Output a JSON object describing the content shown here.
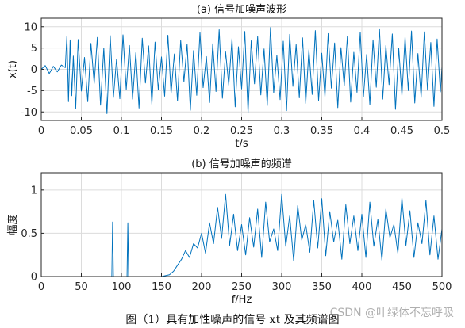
{
  "figure_caption": "图（1）具有加性噪声的信号 xt 及其频谱图",
  "watermark": "CSDN @叶绿体不忘呼吸",
  "chart_data": [
    {
      "type": "line",
      "title": "(a) 信号加噪声波形",
      "xlabel": "t/s",
      "ylabel": "x(t)",
      "xlim": [
        0,
        0.5
      ],
      "ylim": [
        -12,
        12
      ],
      "xticks": [
        "0",
        "0.05",
        "0.1",
        "0.15",
        "0.2",
        "0.25",
        "0.3",
        "0.35",
        "0.4",
        "0.45",
        "0.5"
      ],
      "yticks": [
        "-10",
        "-5",
        "0",
        "5",
        "10"
      ],
      "grid": true,
      "color": "#0072BD",
      "series": [
        {
          "x": [
            0,
            0.005,
            0.01,
            0.015,
            0.02,
            0.025,
            0.03,
            0.032,
            0.034,
            0.036,
            0.038,
            0.04,
            0.043,
            0.046,
            0.05,
            0.054,
            0.058,
            0.062,
            0.066,
            0.07,
            0.074,
            0.078,
            0.082,
            0.086,
            0.09,
            0.094,
            0.098,
            0.102,
            0.106,
            0.11,
            0.114,
            0.118,
            0.122,
            0.126,
            0.13,
            0.134,
            0.138,
            0.142,
            0.146,
            0.15,
            0.154,
            0.158,
            0.162,
            0.166,
            0.17,
            0.174,
            0.178,
            0.182,
            0.186,
            0.19,
            0.194,
            0.198,
            0.202,
            0.206,
            0.21,
            0.214,
            0.218,
            0.222,
            0.226,
            0.23,
            0.234,
            0.238,
            0.242,
            0.246,
            0.25,
            0.254,
            0.258,
            0.262,
            0.266,
            0.27,
            0.274,
            0.278,
            0.282,
            0.286,
            0.29,
            0.294,
            0.298,
            0.302,
            0.306,
            0.31,
            0.314,
            0.318,
            0.322,
            0.326,
            0.33,
            0.334,
            0.338,
            0.342,
            0.346,
            0.35,
            0.354,
            0.358,
            0.362,
            0.366,
            0.37,
            0.374,
            0.378,
            0.382,
            0.386,
            0.39,
            0.394,
            0.398,
            0.402,
            0.406,
            0.41,
            0.414,
            0.418,
            0.422,
            0.426,
            0.43,
            0.434,
            0.438,
            0.442,
            0.446,
            0.45,
            0.454,
            0.458,
            0.462,
            0.466,
            0.47,
            0.474,
            0.478,
            0.482,
            0.486,
            0.49,
            0.494,
            0.498,
            0.5
          ],
          "y": [
            0,
            0.9,
            -1.0,
            0.7,
            -0.6,
            1.0,
            0.4,
            7.8,
            -7.6,
            6.9,
            -6.2,
            3.1,
            -9.2,
            7.0,
            -5.1,
            2.8,
            -7.6,
            6.1,
            -3.3,
            7.5,
            -8.4,
            5.0,
            -10.4,
            7.9,
            -6.6,
            2.4,
            -6.9,
            8.1,
            -4.7,
            5.6,
            -7.0,
            3.9,
            -9.1,
            7.3,
            -3.2,
            5.5,
            -8.2,
            6.4,
            -4.8,
            2.9,
            -6.3,
            8.0,
            -5.7,
            3.6,
            -7.4,
            6.8,
            -2.9,
            5.9,
            -9.6,
            4.4,
            -6.1,
            8.6,
            -4.3,
            3.0,
            -7.8,
            6.0,
            -5.2,
            9.3,
            -6.8,
            4.1,
            -3.7,
            7.2,
            -8.8,
            5.3,
            -4.6,
            8.9,
            -10.2,
            6.7,
            -3.4,
            7.7,
            -6.0,
            4.8,
            -8.5,
            9.8,
            -5.5,
            3.3,
            -7.1,
            6.6,
            -9.7,
            8.2,
            -4.0,
            5.8,
            -6.7,
            7.4,
            -8.0,
            4.6,
            -5.9,
            9.1,
            -7.3,
            3.8,
            -6.5,
            8.4,
            -4.4,
            6.2,
            -9.0,
            5.1,
            -3.9,
            7.8,
            -7.7,
            4.0,
            -5.4,
            8.7,
            -6.4,
            3.5,
            -8.3,
            6.9,
            -4.2,
            9.5,
            -7.0,
            5.6,
            -3.6,
            8.3,
            -9.4,
            4.9,
            -6.2,
            7.6,
            -5.0,
            9.0,
            -7.9,
            3.7,
            -6.6,
            8.8,
            -4.9,
            6.3,
            -8.7,
            7.1,
            -5.3,
            0.6
          ]
        }
      ]
    },
    {
      "type": "line",
      "title": "(b) 信号加噪声的频谱",
      "xlabel": "f/Hz",
      "ylabel": "幅度",
      "xlim": [
        0,
        500
      ],
      "ylim": [
        0,
        1.2
      ],
      "xticks": [
        "0",
        "50",
        "100",
        "150",
        "200",
        "250",
        "300",
        "350",
        "400",
        "450",
        "500"
      ],
      "yticks": [
        "0",
        "0.5",
        "1"
      ],
      "grid": true,
      "color": "#0072BD",
      "series": [
        {
          "x": [
            0,
            50,
            88,
            89,
            90,
            91,
            92,
            107,
            108,
            109,
            110,
            111,
            150,
            160,
            165,
            170,
            175,
            180,
            185,
            190,
            195,
            200,
            205,
            210,
            215,
            220,
            225,
            230,
            235,
            240,
            245,
            250,
            255,
            260,
            265,
            270,
            275,
            280,
            285,
            290,
            295,
            300,
            305,
            310,
            315,
            320,
            325,
            330,
            335,
            340,
            345,
            350,
            355,
            360,
            365,
            370,
            375,
            380,
            385,
            390,
            395,
            400,
            405,
            410,
            415,
            420,
            425,
            430,
            435,
            440,
            445,
            450,
            455,
            460,
            465,
            470,
            475,
            480,
            485,
            490,
            495,
            500
          ],
          "y": [
            0,
            0,
            0,
            0.63,
            0.0,
            0,
            0,
            0,
            0.62,
            0.0,
            0,
            0,
            0,
            0.02,
            0.06,
            0.13,
            0.2,
            0.3,
            0.22,
            0.38,
            0.33,
            0.5,
            0.27,
            0.62,
            0.38,
            0.8,
            0.44,
            0.95,
            0.36,
            0.72,
            0.3,
            0.6,
            0.25,
            0.68,
            0.34,
            0.78,
            0.22,
            0.86,
            0.4,
            0.55,
            0.3,
            0.95,
            0.35,
            0.7,
            0.18,
            0.82,
            0.42,
            0.6,
            0.28,
            0.88,
            0.33,
            0.9,
            0.24,
            0.75,
            0.4,
            0.65,
            0.2,
            0.83,
            0.38,
            0.7,
            0.3,
            0.72,
            0.22,
            0.86,
            0.35,
            0.66,
            0.19,
            0.78,
            0.45,
            0.6,
            0.27,
            0.91,
            0.36,
            0.76,
            0.22,
            0.62,
            0.38,
            0.88,
            0.25,
            0.7,
            0.2,
            0.55
          ]
        }
      ]
    }
  ]
}
